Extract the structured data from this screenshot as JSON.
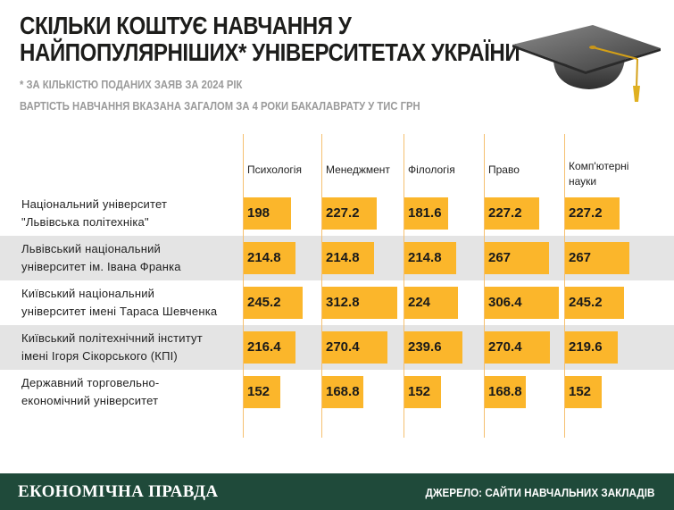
{
  "header": {
    "title_line1": "СКІЛЬКИ КОШТУЄ НАВЧАННЯ У",
    "title_line2": "НАЙПОПУЛЯРНІШИХ* УНІВЕРСИТЕТАХ УКРАЇНИ",
    "footnote": "* ЗА КІЛЬКІСТЮ ПОДАНИХ ЗАЯВ ЗА 2024 РІК",
    "subtitle": "ВАРТІСТЬ НАВЧАННЯ ВКАЗАНА ЗАГАЛОМ ЗА 4 РОКИ БАКАЛАВРАТУ У ТИС ГРН"
  },
  "icons": {
    "decoration": "graduation-cap-icon"
  },
  "colors": {
    "bar": "#fbb62b",
    "stripe": "#e4e4e4",
    "footer": "#1f4a3a",
    "gridline": "#f5c070"
  },
  "chart_data": {
    "type": "bar",
    "title": "СКІЛЬКИ КОШТУЄ НАВЧАННЯ У НАЙПОПУЛЯРНІШИХ* УНІВЕРСИТЕТАХ УКРАЇНИ",
    "unit": "тис грн",
    "categories": [
      "Психологія",
      "Менеджмент",
      "Філологія",
      "Право",
      "Комп'ютерні науки"
    ],
    "rows": [
      {
        "university": [
          "Національний університет",
          "\"Львівська політехніка\""
        ],
        "values": [
          198,
          227.2,
          181.6,
          227.2,
          227.2
        ],
        "labels": [
          "198",
          "227.2",
          "181.6",
          "227.2",
          "227.2"
        ]
      },
      {
        "university": [
          "Львівський національний",
          "університет ім. Івана Франка"
        ],
        "values": [
          214.8,
          214.8,
          214.8,
          267,
          267
        ],
        "labels": [
          "214.8",
          "214.8",
          "214.8",
          "267",
          "267"
        ]
      },
      {
        "university": [
          "Київський національний",
          "університет імені Тараса Шевченка"
        ],
        "values": [
          245.2,
          312.8,
          224,
          306.4,
          245.2
        ],
        "labels": [
          "245.2",
          "312.8",
          "224",
          "306.4",
          "245.2"
        ]
      },
      {
        "university": [
          "Київський політехнічний інститут",
          "імені Ігоря Сікорського (КПІ)"
        ],
        "values": [
          216.4,
          270.4,
          239.6,
          270.4,
          219.6
        ],
        "labels": [
          "216.4",
          "270.4",
          "239.6",
          "270.4",
          "219.6"
        ]
      },
      {
        "university": [
          "Державний торговельно-",
          "економічний університет"
        ],
        "values": [
          152,
          168.8,
          152,
          168.8,
          152
        ],
        "labels": [
          "152",
          "168.8",
          "152",
          "168.8",
          "152"
        ]
      }
    ]
  },
  "footer": {
    "brand": "ЕКОНОМІЧНА ПРАВДА",
    "source": "ДЖЕРЕЛО: САЙТИ НАВЧАЛЬНИХ ЗАКЛАДІВ"
  }
}
